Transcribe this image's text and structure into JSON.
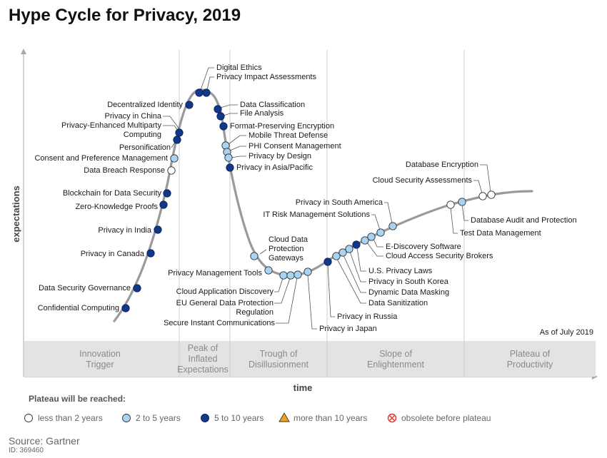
{
  "title": "Hype Cycle for Privacy, 2019",
  "chart_data": {
    "type": "scatter",
    "xlabel": "time",
    "ylabel": "expectations",
    "as_of": "As of July 2019",
    "phases": [
      [
        "Innovation",
        "Trigger"
      ],
      [
        "Peak of",
        "Inflated",
        "Expectations"
      ],
      [
        "Trough of",
        "Disillusionment"
      ],
      [
        "Slope of",
        "Enlightenment"
      ],
      [
        "Plateau of",
        "Productivity"
      ]
    ],
    "categories": [
      {
        "key": "lt2",
        "label": "less than 2 years",
        "color": "#ffffff"
      },
      {
        "key": "2to5",
        "label": "2 to 5 years",
        "color": "#a9d3f2"
      },
      {
        "key": "5to10",
        "label": "5 to 10 years",
        "color": "#12388a"
      },
      {
        "key": "gt10",
        "label": "more than 10 years",
        "color": "#f2a31b"
      },
      {
        "key": "obsolete",
        "label": "obsolete before plateau",
        "color": "#e03030"
      }
    ],
    "technologies": [
      {
        "name": "Confidential Computing",
        "phase": "Innovation Trigger",
        "plateau": "5to10"
      },
      {
        "name": "Data Security Governance",
        "phase": "Innovation Trigger",
        "plateau": "5to10"
      },
      {
        "name": "Privacy in Canada",
        "phase": "Innovation Trigger",
        "plateau": "5to10"
      },
      {
        "name": "Privacy in India",
        "phase": "Innovation Trigger",
        "plateau": "5to10"
      },
      {
        "name": "Zero-Knowledge Proofs",
        "phase": "Innovation Trigger",
        "plateau": "5to10"
      },
      {
        "name": "Blockchain for Data Security",
        "phase": "Innovation Trigger",
        "plateau": "5to10"
      },
      {
        "name": "Data Breach Response",
        "phase": "Innovation Trigger",
        "plateau": "lt2"
      },
      {
        "name": "Consent and Preference Management",
        "phase": "Innovation Trigger",
        "plateau": "2to5"
      },
      {
        "name": "Personification",
        "phase": "Innovation Trigger",
        "plateau": "5to10"
      },
      {
        "name": "Privacy-Enhanced Multiparty Computing",
        "phase": "Innovation Trigger",
        "plateau": "5to10"
      },
      {
        "name": "Privacy in China",
        "phase": "Innovation Trigger",
        "plateau": "5to10"
      },
      {
        "name": "Decentralized Identity",
        "phase": "Peak of Inflated Expectations",
        "plateau": "5to10"
      },
      {
        "name": "Digital Ethics",
        "phase": "Peak of Inflated Expectations",
        "plateau": "5to10"
      },
      {
        "name": "Privacy Impact Assessments",
        "phase": "Peak of Inflated Expectations",
        "plateau": "5to10"
      },
      {
        "name": "Data Classification",
        "phase": "Peak of Inflated Expectations",
        "plateau": "5to10"
      },
      {
        "name": "File Analysis",
        "phase": "Peak of Inflated Expectations",
        "plateau": "5to10"
      },
      {
        "name": "Format-Preserving Encryption",
        "phase": "Peak of Inflated Expectations",
        "plateau": "5to10"
      },
      {
        "name": "Mobile Threat Defense",
        "phase": "Peak of Inflated Expectations",
        "plateau": "2to5"
      },
      {
        "name": "PHI Consent Management",
        "phase": "Peak of Inflated Expectations",
        "plateau": "2to5"
      },
      {
        "name": "Privacy by Design",
        "phase": "Peak of Inflated Expectations",
        "plateau": "2to5"
      },
      {
        "name": "Privacy in Asia/Pacific",
        "phase": "Peak of Inflated Expectations",
        "plateau": "5to10"
      },
      {
        "name": "Cloud Data Protection Gateways",
        "phase": "Trough of Disillusionment",
        "plateau": "2to5"
      },
      {
        "name": "Privacy Management Tools",
        "phase": "Trough of Disillusionment",
        "plateau": "2to5"
      },
      {
        "name": "Cloud Application Discovery",
        "phase": "Trough of Disillusionment",
        "plateau": "2to5"
      },
      {
        "name": "EU General Data Protection Regulation",
        "phase": "Trough of Disillusionment",
        "plateau": "2to5"
      },
      {
        "name": "Secure Instant Communications",
        "phase": "Trough of Disillusionment",
        "plateau": "2to5"
      },
      {
        "name": "Privacy in Japan",
        "phase": "Trough of Disillusionment",
        "plateau": "2to5"
      },
      {
        "name": "Privacy in Russia",
        "phase": "Slope of Enlightenment",
        "plateau": "5to10"
      },
      {
        "name": "Data Sanitization",
        "phase": "Slope of Enlightenment",
        "plateau": "2to5"
      },
      {
        "name": "Dynamic Data Masking",
        "phase": "Slope of Enlightenment",
        "plateau": "2to5"
      },
      {
        "name": "Privacy in South Korea",
        "phase": "Slope of Enlightenment",
        "plateau": "2to5"
      },
      {
        "name": "U.S. Privacy Laws",
        "phase": "Slope of Enlightenment",
        "plateau": "5to10"
      },
      {
        "name": "Cloud Access Security Brokers",
        "phase": "Slope of Enlightenment",
        "plateau": "2to5"
      },
      {
        "name": "E-Discovery Software",
        "phase": "Slope of Enlightenment",
        "plateau": "2to5"
      },
      {
        "name": "IT Risk Management Solutions",
        "phase": "Slope of Enlightenment",
        "plateau": "2to5"
      },
      {
        "name": "Privacy in South America",
        "phase": "Slope of Enlightenment",
        "plateau": "2to5"
      },
      {
        "name": "Test Data Management",
        "phase": "Plateau of Productivity",
        "plateau": "lt2"
      },
      {
        "name": "Database Audit and Protection",
        "phase": "Plateau of Productivity",
        "plateau": "2to5"
      },
      {
        "name": "Cloud Security Assessments",
        "phase": "Plateau of Productivity",
        "plateau": "lt2"
      },
      {
        "name": "Database Encryption",
        "phase": "Plateau of Productivity",
        "plateau": "lt2"
      }
    ]
  },
  "legend": {
    "title": "Plateau will be reached:"
  },
  "source": "Source: Gartner",
  "doc_id": "ID: 369460"
}
